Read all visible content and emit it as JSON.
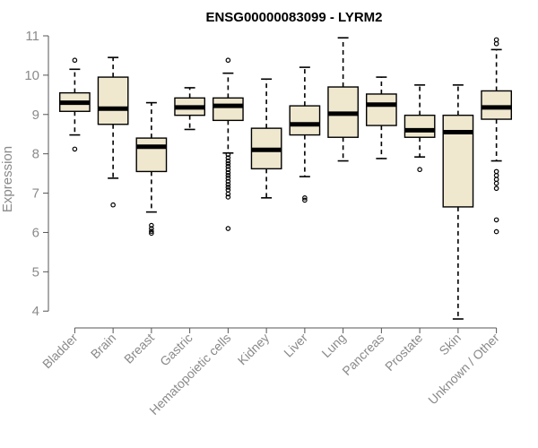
{
  "chart_data": {
    "type": "boxplot",
    "title": "ENSG00000083099 - LYRM2",
    "xlabel": "",
    "ylabel": "Expression",
    "ylim": [
      3.8,
      11.0
    ],
    "yticks": [
      4,
      5,
      6,
      7,
      8,
      9,
      10,
      11
    ],
    "grid": false,
    "categories": [
      "Bladder",
      "Brain",
      "Breast",
      "Gastric",
      "Hematopoietic cells",
      "Kidney",
      "Liver",
      "Lung",
      "Pancreas",
      "Prostate",
      "Skin",
      "Unknown / Other"
    ],
    "boxes": [
      {
        "min": 8.48,
        "q1": 9.08,
        "median": 9.3,
        "q3": 9.55,
        "max": 10.15,
        "outliers": [
          10.38,
          8.12
        ]
      },
      {
        "min": 7.38,
        "q1": 8.75,
        "median": 9.15,
        "q3": 9.95,
        "max": 10.45,
        "outliers": [
          6.7
        ]
      },
      {
        "min": 6.52,
        "q1": 7.55,
        "median": 8.18,
        "q3": 8.4,
        "max": 9.3,
        "outliers": [
          6.18,
          6.1,
          6.03,
          5.98
        ]
      },
      {
        "min": 8.62,
        "q1": 8.98,
        "median": 9.18,
        "q3": 9.42,
        "max": 9.68,
        "outliers": []
      },
      {
        "min": 8.02,
        "q1": 8.85,
        "median": 9.22,
        "q3": 9.42,
        "max": 10.05,
        "outliers": [
          10.38,
          7.98,
          7.9,
          7.82,
          7.75,
          7.68,
          7.6,
          7.52,
          7.45,
          7.38,
          7.3,
          7.22,
          7.15,
          7.08,
          6.98,
          6.9,
          6.1
        ]
      },
      {
        "min": 6.88,
        "q1": 7.62,
        "median": 8.1,
        "q3": 8.65,
        "max": 9.9,
        "outliers": []
      },
      {
        "min": 7.42,
        "q1": 8.48,
        "median": 8.75,
        "q3": 9.22,
        "max": 10.2,
        "outliers": [
          6.88,
          6.82
        ]
      },
      {
        "min": 7.82,
        "q1": 8.42,
        "median": 9.02,
        "q3": 9.7,
        "max": 10.95,
        "outliers": []
      },
      {
        "min": 7.88,
        "q1": 8.72,
        "median": 9.25,
        "q3": 9.52,
        "max": 9.95,
        "outliers": []
      },
      {
        "min": 7.92,
        "q1": 8.42,
        "median": 8.6,
        "q3": 8.98,
        "max": 9.75,
        "outliers": [
          7.6
        ]
      },
      {
        "min": 3.8,
        "q1": 6.65,
        "median": 8.55,
        "q3": 8.98,
        "max": 9.75,
        "outliers": []
      },
      {
        "min": 7.82,
        "q1": 8.88,
        "median": 9.18,
        "q3": 9.6,
        "max": 10.65,
        "outliers": [
          10.9,
          10.8,
          7.55,
          7.45,
          7.35,
          7.25,
          7.12,
          6.32,
          6.02
        ]
      }
    ]
  }
}
